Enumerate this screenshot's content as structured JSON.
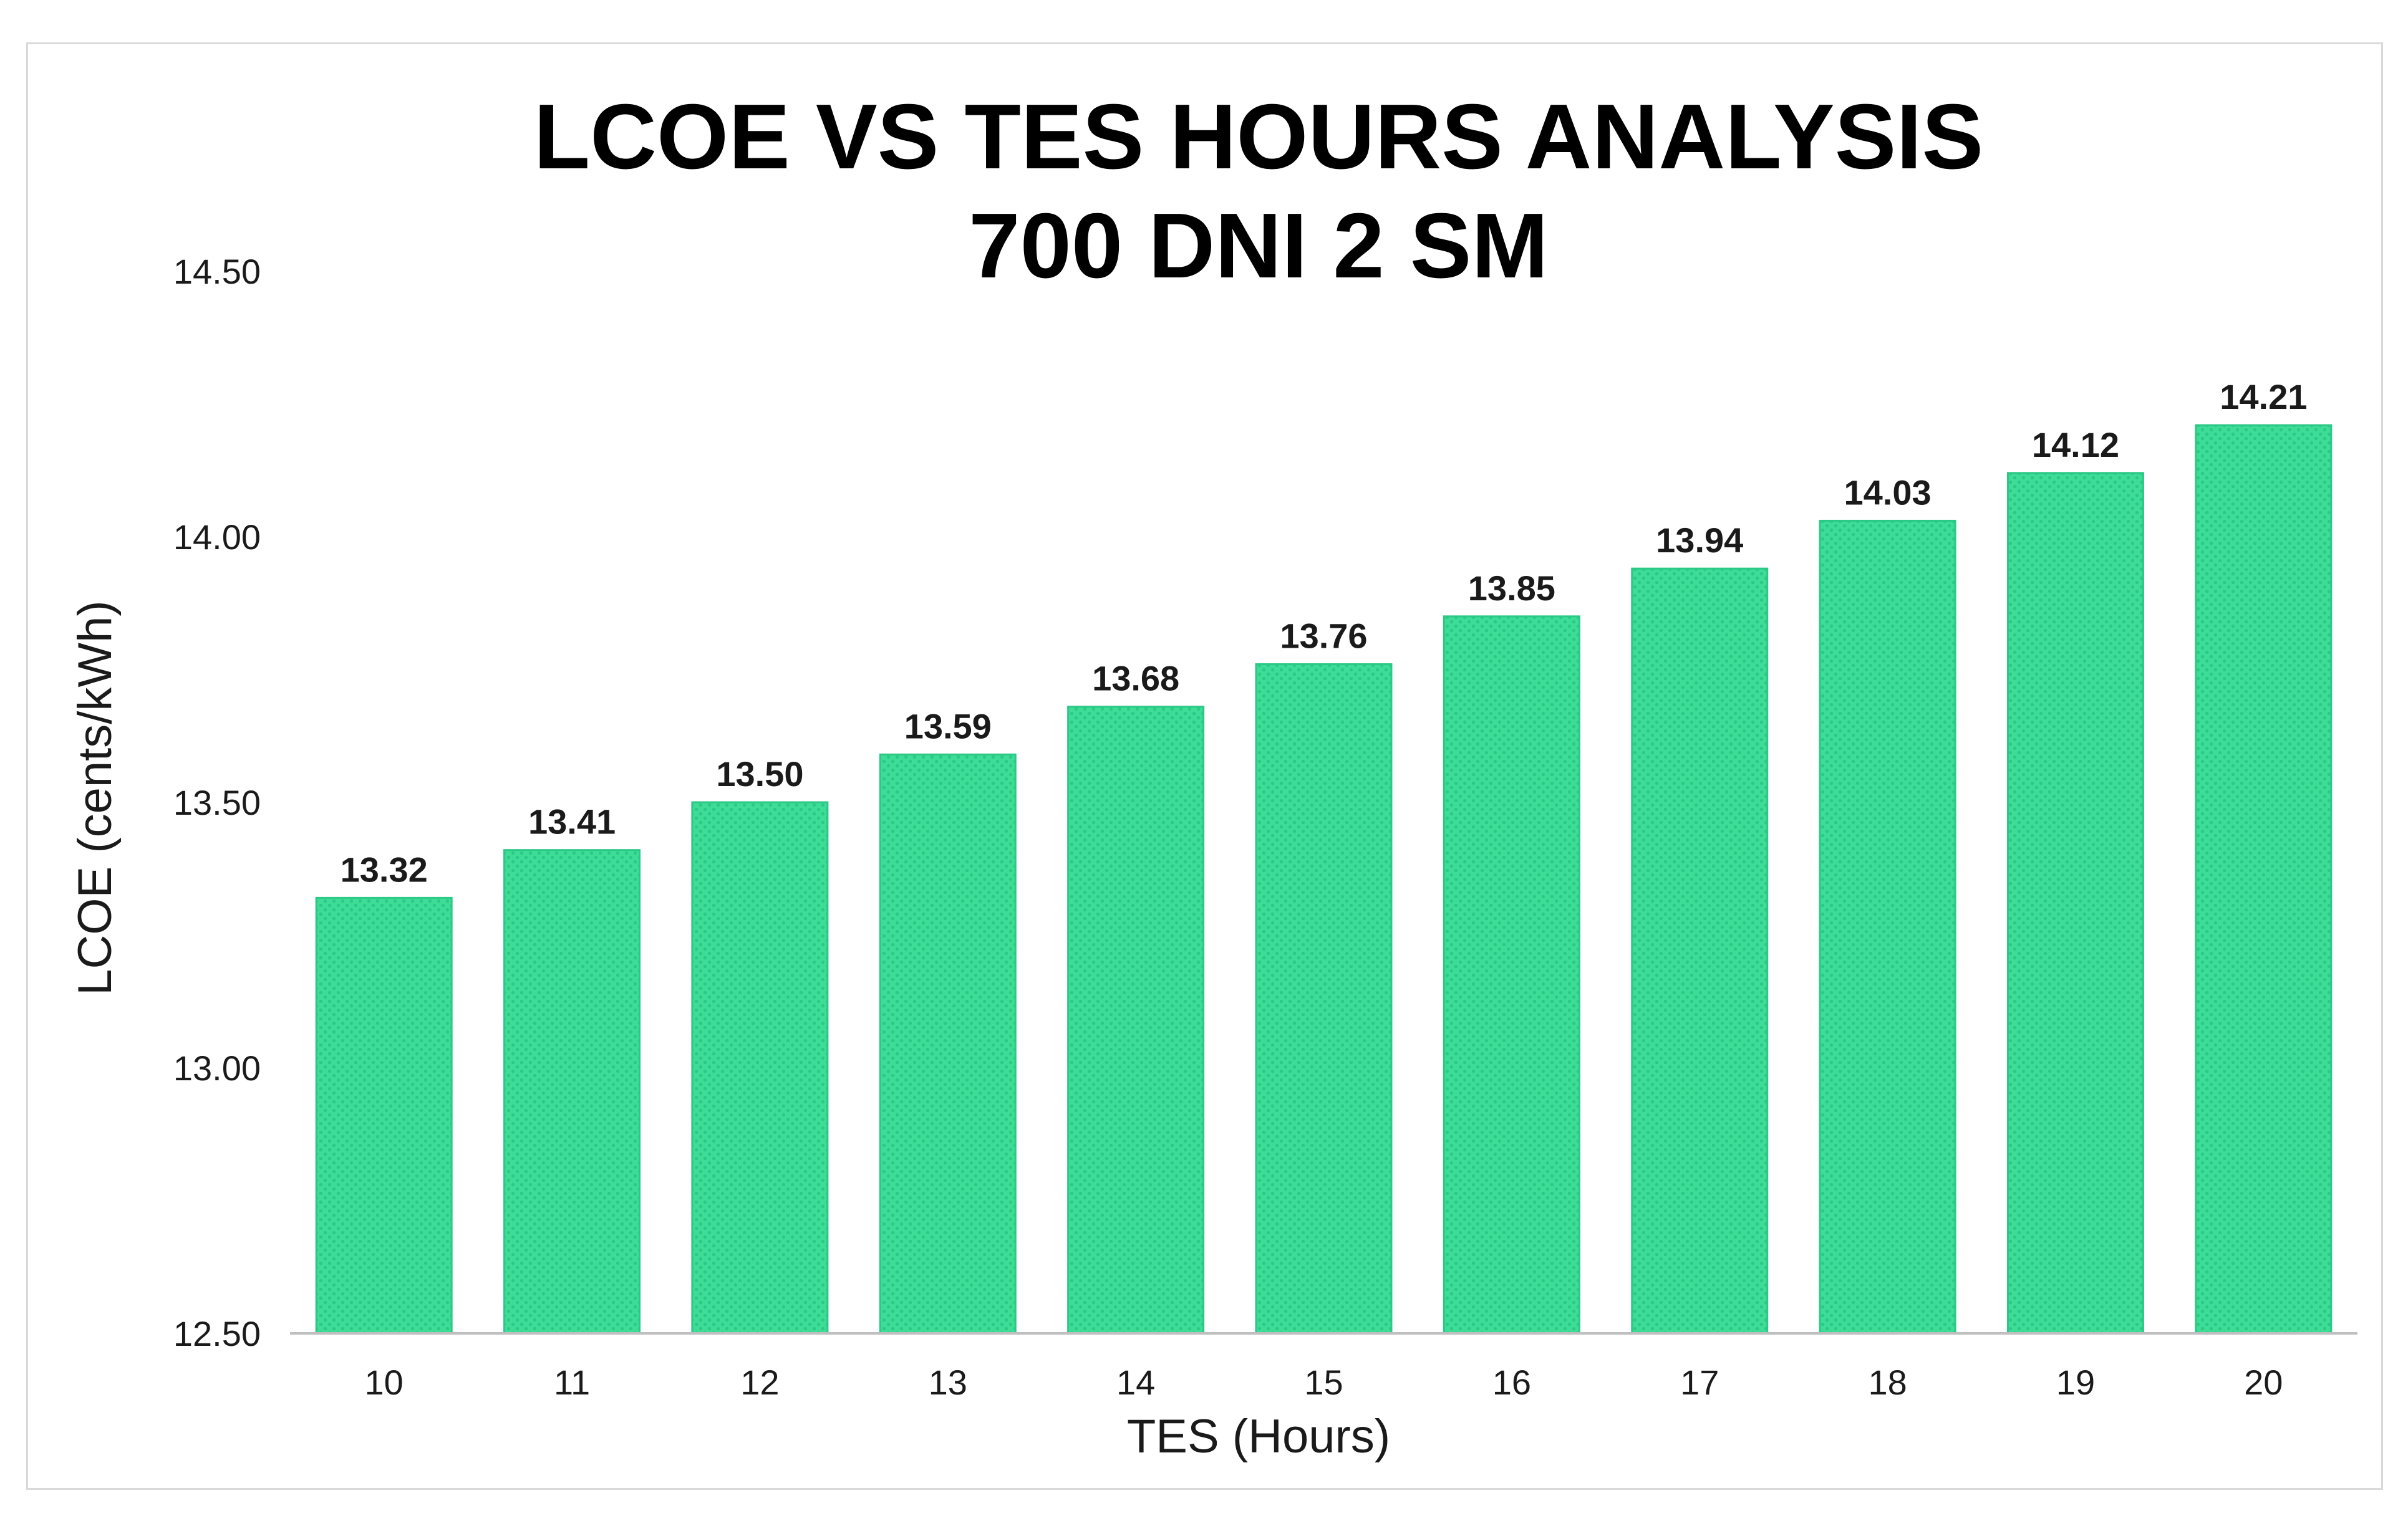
{
  "chart_data": {
    "type": "bar",
    "title": [
      "LCOE VS TES HOURS ANALYSIS",
      "700 DNI  2 SM"
    ],
    "xlabel": "TES (Hours)",
    "ylabel": "LCOE (cents/kWh)",
    "categories": [
      "10",
      "11",
      "12",
      "13",
      "14",
      "15",
      "16",
      "17",
      "18",
      "19",
      "20"
    ],
    "values": [
      13.32,
      13.41,
      13.5,
      13.59,
      13.68,
      13.76,
      13.85,
      13.94,
      14.03,
      14.12,
      14.21
    ],
    "value_labels": [
      "13.32",
      "13.41",
      "13.50",
      "13.59",
      "13.68",
      "13.76",
      "13.85",
      "13.94",
      "14.03",
      "14.12",
      "14.21"
    ],
    "ylim": [
      12.5,
      14.5
    ],
    "yticks": [
      "12.50",
      "13.00",
      "13.50",
      "14.00",
      "14.50"
    ],
    "ytick_values": [
      12.5,
      13.0,
      13.5,
      14.0,
      14.5
    ],
    "grid": false,
    "legend": "none",
    "colors": {
      "bar": "#3ddc97",
      "bar_pattern": "#2cc886",
      "axis": "#bfbfbf",
      "text": "#1a1a1a"
    }
  }
}
